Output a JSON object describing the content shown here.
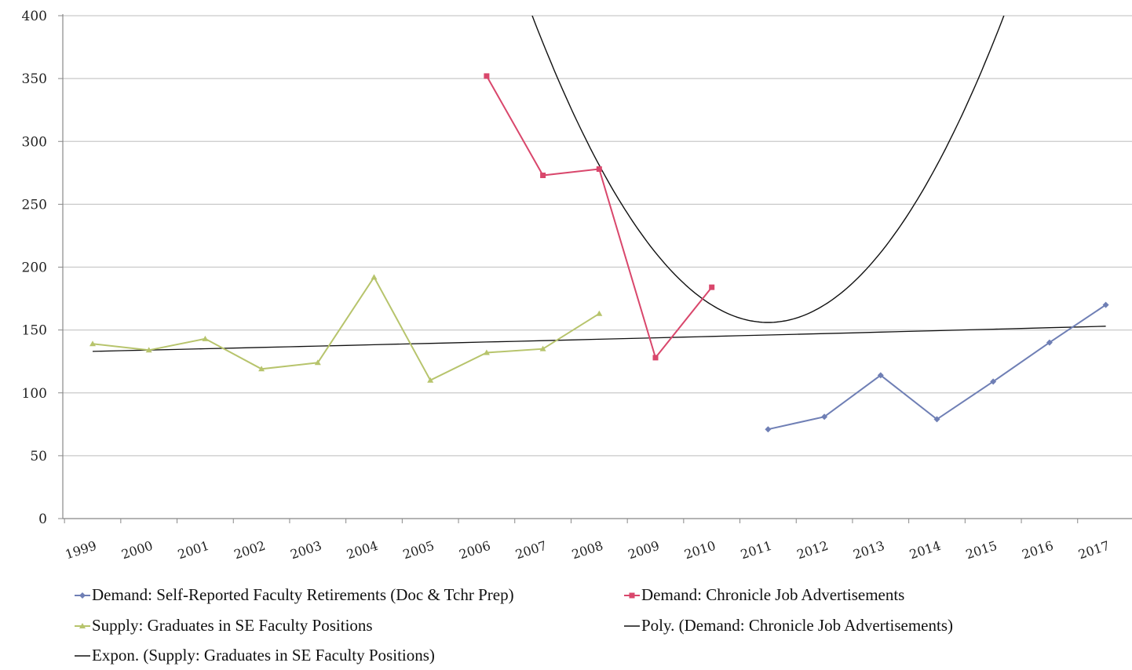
{
  "chart_data": {
    "type": "line",
    "title": "",
    "xlabel": "",
    "ylabel": "",
    "categories": [
      "1999",
      "2000",
      "2001",
      "2002",
      "2003",
      "2004",
      "2005",
      "2006",
      "2007",
      "2008",
      "2009",
      "2010",
      "2011",
      "2012",
      "2013",
      "2014",
      "2015",
      "2016",
      "2017"
    ],
    "yticks": [
      "0",
      "50",
      "100",
      "150",
      "200",
      "250",
      "300",
      "350",
      "400"
    ],
    "ylim": [
      0,
      400
    ],
    "grid": true,
    "legend_position": "bottom",
    "series": [
      {
        "name": "Demand: Self-Reported Faculty Retirements (Doc & Tchr Prep)",
        "color": "#6f7fb5",
        "marker": "diamond",
        "kind": "data",
        "values": [
          null,
          null,
          null,
          null,
          null,
          null,
          null,
          null,
          null,
          null,
          null,
          null,
          71,
          81,
          114,
          79,
          109,
          140,
          170
        ]
      },
      {
        "name": "Demand: Chronicle Job Advertisements",
        "color": "#d9476c",
        "marker": "square",
        "kind": "data",
        "values": [
          null,
          null,
          null,
          null,
          null,
          null,
          null,
          352,
          273,
          278,
          128,
          184,
          null,
          null,
          null,
          null,
          null,
          null,
          null
        ]
      },
      {
        "name": "Supply: Graduates in SE Faculty Positions",
        "color": "#b7c46c",
        "marker": "triangle",
        "kind": "data",
        "values": [
          139,
          134,
          143,
          119,
          124,
          192,
          110,
          132,
          135,
          163,
          null,
          null,
          null,
          null,
          null,
          null,
          null,
          null,
          null
        ]
      },
      {
        "name": "Poly. (Demand: Chronicle Job Advertisements)",
        "color": "#111111",
        "kind": "trend-poly",
        "vertex_index": 12.0,
        "vertex_value": 156,
        "curvature": 13.9
      },
      {
        "name": "Expon. (Supply: Graduates in SE Faculty Positions)",
        "color": "#111111",
        "kind": "trend-exp",
        "start_value": 133,
        "end_value": 153
      }
    ]
  }
}
